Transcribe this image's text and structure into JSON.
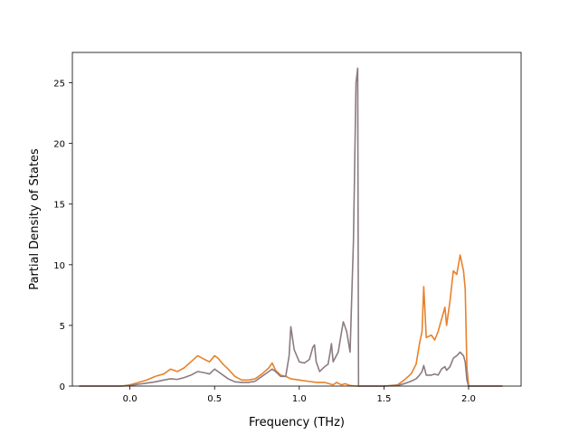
{
  "chart_data": {
    "type": "line",
    "xlabel": "Frequency (THz)",
    "ylabel": "Partial Density of States",
    "xlim": [
      -0.34,
      2.31
    ],
    "ylim": [
      0,
      27.5
    ],
    "x_ticks": [
      {
        "value": 0.0,
        "label": "0.0"
      },
      {
        "value": 0.5,
        "label": "0.5"
      },
      {
        "value": 1.0,
        "label": "1.0"
      },
      {
        "value": 1.5,
        "label": "1.5"
      },
      {
        "value": 2.0,
        "label": "2.0"
      }
    ],
    "y_ticks": [
      {
        "value": 0,
        "label": "0"
      },
      {
        "value": 5,
        "label": "5"
      },
      {
        "value": 10,
        "label": "10"
      },
      {
        "value": 15,
        "label": "15"
      },
      {
        "value": 20,
        "label": "20"
      },
      {
        "value": 25,
        "label": "25"
      }
    ],
    "grid": false,
    "series": [
      {
        "color": "#e8812a",
        "x": [
          -0.3,
          -0.05,
          0.0,
          0.05,
          0.1,
          0.15,
          0.2,
          0.24,
          0.28,
          0.32,
          0.36,
          0.4,
          0.44,
          0.47,
          0.5,
          0.52,
          0.55,
          0.58,
          0.62,
          0.66,
          0.7,
          0.74,
          0.78,
          0.82,
          0.84,
          0.86,
          0.89,
          0.92,
          0.95,
          1.0,
          1.05,
          1.1,
          1.15,
          1.2,
          1.22,
          1.25,
          1.27,
          1.3,
          1.33,
          1.345,
          1.35,
          1.36,
          1.4,
          1.5,
          1.58,
          1.62,
          1.66,
          1.69,
          1.71,
          1.725,
          1.735,
          1.75,
          1.78,
          1.8,
          1.82,
          1.84,
          1.86,
          1.87,
          1.89,
          1.91,
          1.93,
          1.95,
          1.97,
          1.98,
          1.99,
          2.0,
          2.05,
          2.2
        ],
        "y": [
          0,
          0,
          0.1,
          0.3,
          0.5,
          0.8,
          1.0,
          1.4,
          1.2,
          1.5,
          2.0,
          2.5,
          2.2,
          2.0,
          2.5,
          2.3,
          1.8,
          1.4,
          0.8,
          0.5,
          0.5,
          0.6,
          1.0,
          1.5,
          1.9,
          1.3,
          0.9,
          0.8,
          0.6,
          0.5,
          0.4,
          0.3,
          0.3,
          0.1,
          0.3,
          0.1,
          0.2,
          0.05,
          0,
          0,
          0,
          0,
          0,
          0,
          0.1,
          0.5,
          1.0,
          1.8,
          3.5,
          4.5,
          8.2,
          4.0,
          4.2,
          3.8,
          4.5,
          5.5,
          6.5,
          5.0,
          7.0,
          9.5,
          9.2,
          10.8,
          9.5,
          8.0,
          1.5,
          0,
          0,
          0
        ]
      },
      {
        "color": "#8c7b80",
        "x": [
          -0.3,
          -0.05,
          0.0,
          0.05,
          0.1,
          0.15,
          0.2,
          0.24,
          0.28,
          0.32,
          0.36,
          0.4,
          0.44,
          0.47,
          0.5,
          0.52,
          0.55,
          0.58,
          0.62,
          0.66,
          0.7,
          0.74,
          0.78,
          0.82,
          0.84,
          0.86,
          0.89,
          0.92,
          0.94,
          0.95,
          0.97,
          1.0,
          1.03,
          1.06,
          1.08,
          1.09,
          1.1,
          1.12,
          1.15,
          1.17,
          1.18,
          1.19,
          1.2,
          1.23,
          1.25,
          1.26,
          1.28,
          1.3,
          1.32,
          1.335,
          1.345,
          1.35,
          1.36,
          1.4,
          1.5,
          1.58,
          1.62,
          1.66,
          1.69,
          1.71,
          1.725,
          1.735,
          1.75,
          1.78,
          1.8,
          1.82,
          1.84,
          1.86,
          1.87,
          1.89,
          1.91,
          1.93,
          1.95,
          1.97,
          1.98,
          1.99,
          2.0,
          2.05,
          2.2
        ],
        "y": [
          0,
          0,
          0.05,
          0.15,
          0.25,
          0.35,
          0.5,
          0.6,
          0.55,
          0.7,
          0.9,
          1.2,
          1.1,
          1.0,
          1.4,
          1.2,
          0.9,
          0.6,
          0.35,
          0.3,
          0.3,
          0.4,
          0.8,
          1.2,
          1.4,
          1.2,
          0.8,
          0.8,
          2.5,
          4.9,
          3.0,
          2.0,
          1.9,
          2.2,
          3.2,
          3.4,
          2.0,
          1.2,
          1.6,
          1.8,
          2.6,
          3.5,
          2.0,
          2.8,
          4.5,
          5.3,
          4.5,
          2.8,
          12.0,
          25.0,
          26.2,
          0,
          0,
          0,
          0,
          0.05,
          0.2,
          0.4,
          0.6,
          0.9,
          1.2,
          1.7,
          0.9,
          0.9,
          1.0,
          0.9,
          1.4,
          1.6,
          1.3,
          1.6,
          2.3,
          2.5,
          2.8,
          2.5,
          2.0,
          0.5,
          0,
          0,
          0
        ]
      }
    ]
  }
}
